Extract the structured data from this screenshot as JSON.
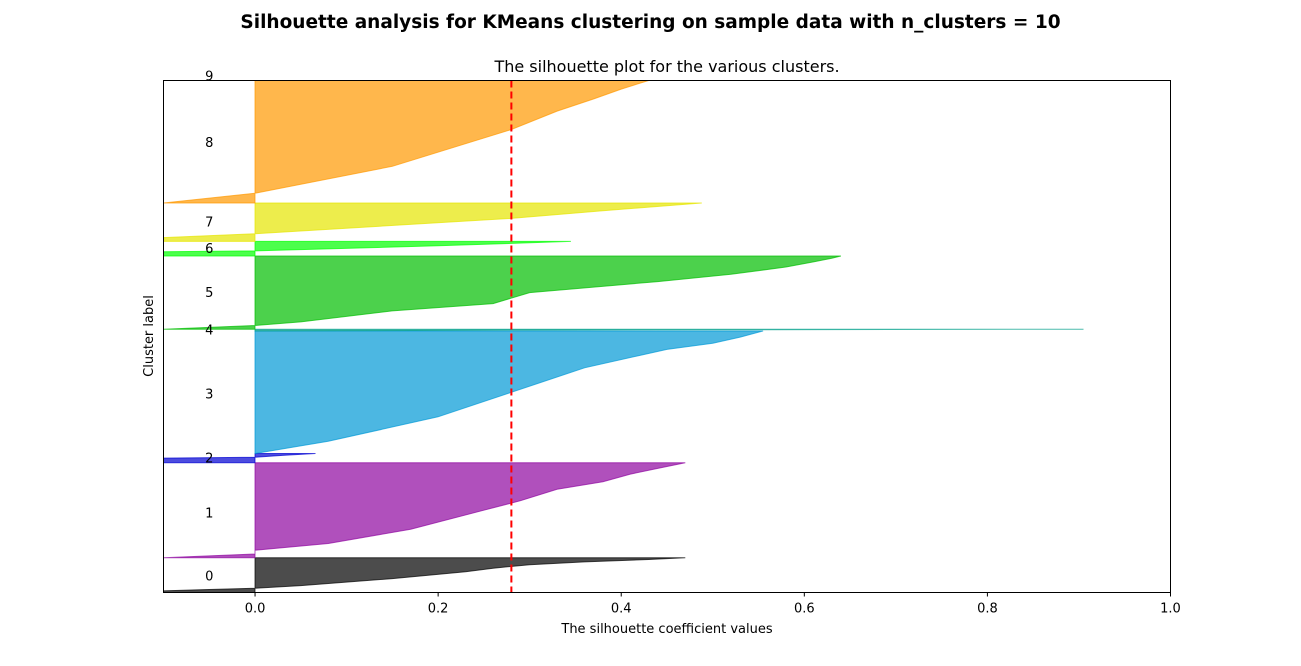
{
  "figure": {
    "suptitle": "Silhouette analysis for KMeans clustering on sample data with n_clusters = 10"
  },
  "chart_data": {
    "type": "area",
    "title": "The silhouette plot for the various clusters.",
    "xlabel": "The silhouette coefficient values",
    "ylabel": "Cluster label",
    "xlim": [
      -0.1,
      1.0
    ],
    "xticks": [
      "0.0",
      "0.2",
      "0.4",
      "0.6",
      "0.8",
      "1.0"
    ],
    "ylim": [
      0,
      560
    ],
    "yticks": [],
    "grid": false,
    "average_silhouette": 0.28,
    "average_line_color": "#ff0000",
    "clusters": [
      {
        "label": "0",
        "color": "#000000",
        "y_start": 0,
        "y_end": 38,
        "profile": [
          [
            0.0,
            -0.1
          ],
          [
            0.05,
            -0.1
          ],
          [
            0.08,
            -0.06
          ],
          [
            0.12,
            0.0
          ],
          [
            0.2,
            0.05
          ],
          [
            0.4,
            0.15
          ],
          [
            0.6,
            0.23
          ],
          [
            0.7,
            0.26
          ],
          [
            0.8,
            0.3
          ],
          [
            0.88,
            0.36
          ],
          [
            0.95,
            0.43
          ],
          [
            1.0,
            0.47
          ]
        ]
      },
      {
        "label": "1",
        "color": "#8e06a0",
        "y_start": 38,
        "y_end": 142,
        "profile": [
          [
            0.0,
            -0.1
          ],
          [
            0.04,
            0.0
          ],
          [
            0.08,
            0.0
          ],
          [
            0.15,
            0.08
          ],
          [
            0.3,
            0.17
          ],
          [
            0.5,
            0.25
          ],
          [
            0.6,
            0.29
          ],
          [
            0.72,
            0.33
          ],
          [
            0.8,
            0.38
          ],
          [
            0.88,
            0.41
          ],
          [
            0.94,
            0.44
          ],
          [
            1.0,
            0.47
          ]
        ]
      },
      {
        "label": "2",
        "color": "#0000d2",
        "y_start": 142,
        "y_end": 152,
        "profile": [
          [
            0.0,
            -0.1
          ],
          [
            0.5,
            -0.1
          ],
          [
            0.6,
            0.0
          ],
          [
            0.8,
            0.03
          ],
          [
            1.0,
            0.066
          ]
        ]
      },
      {
        "label": "3",
        "color": "#0099d5",
        "y_start": 152,
        "y_end": 286,
        "profile": [
          [
            0.0,
            0.0
          ],
          [
            0.1,
            0.08
          ],
          [
            0.3,
            0.2
          ],
          [
            0.5,
            0.28
          ],
          [
            0.7,
            0.36
          ],
          [
            0.8,
            0.42
          ],
          [
            0.85,
            0.45
          ],
          [
            0.9,
            0.5
          ],
          [
            0.95,
            0.53
          ],
          [
            1.0,
            0.555
          ]
        ]
      },
      {
        "label": "4",
        "color": "#00a08a",
        "y_start": 286,
        "y_end": 288,
        "profile": [
          [
            0.0,
            0.0
          ],
          [
            0.5,
            0.3
          ],
          [
            1.0,
            0.905
          ]
        ]
      },
      {
        "label": "5",
        "color": "#00be00",
        "y_start": 288,
        "y_end": 368,
        "profile": [
          [
            0.0,
            -0.1
          ],
          [
            0.05,
            0.0
          ],
          [
            0.1,
            0.05
          ],
          [
            0.25,
            0.15
          ],
          [
            0.35,
            0.26
          ],
          [
            0.5,
            0.3
          ],
          [
            0.65,
            0.44
          ],
          [
            0.75,
            0.52
          ],
          [
            0.85,
            0.58
          ],
          [
            0.92,
            0.61
          ],
          [
            0.97,
            0.63
          ],
          [
            1.0,
            0.64
          ]
        ]
      },
      {
        "label": "6",
        "color": "#00ff00",
        "y_start": 368,
        "y_end": 384,
        "profile": [
          [
            0.0,
            -0.1
          ],
          [
            0.3,
            -0.1
          ],
          [
            0.35,
            0.0
          ],
          [
            0.7,
            0.2
          ],
          [
            1.0,
            0.345
          ]
        ]
      },
      {
        "label": "7",
        "color": "#e5e500",
        "y_start": 384,
        "y_end": 426,
        "profile": [
          [
            0.0,
            -0.1
          ],
          [
            0.1,
            -0.1
          ],
          [
            0.2,
            0.0
          ],
          [
            0.6,
            0.28
          ],
          [
            0.8,
            0.38
          ],
          [
            1.0,
            0.488
          ]
        ]
      },
      {
        "label": "8",
        "color": "#ff9900",
        "y_start": 426,
        "y_end": 560,
        "profile": [
          [
            0.0,
            -0.1
          ],
          [
            0.08,
            0.0
          ],
          [
            0.3,
            0.15
          ],
          [
            0.6,
            0.28
          ],
          [
            0.75,
            0.33
          ],
          [
            0.85,
            0.37
          ],
          [
            0.93,
            0.4
          ],
          [
            1.0,
            0.43
          ]
        ]
      },
      {
        "label": "9",
        "color": "#ffd0d0",
        "y_start": 560,
        "y_end": 560,
        "profile": [
          [
            0.0,
            0.0
          ],
          [
            1.0,
            0.0
          ]
        ]
      }
    ],
    "cluster_label_positions": {
      "0": 18,
      "1": 87,
      "2": 147,
      "3": 217,
      "4": 287,
      "5": 328,
      "6": 376,
      "7": 405,
      "8": 492,
      "9": 565
    }
  }
}
